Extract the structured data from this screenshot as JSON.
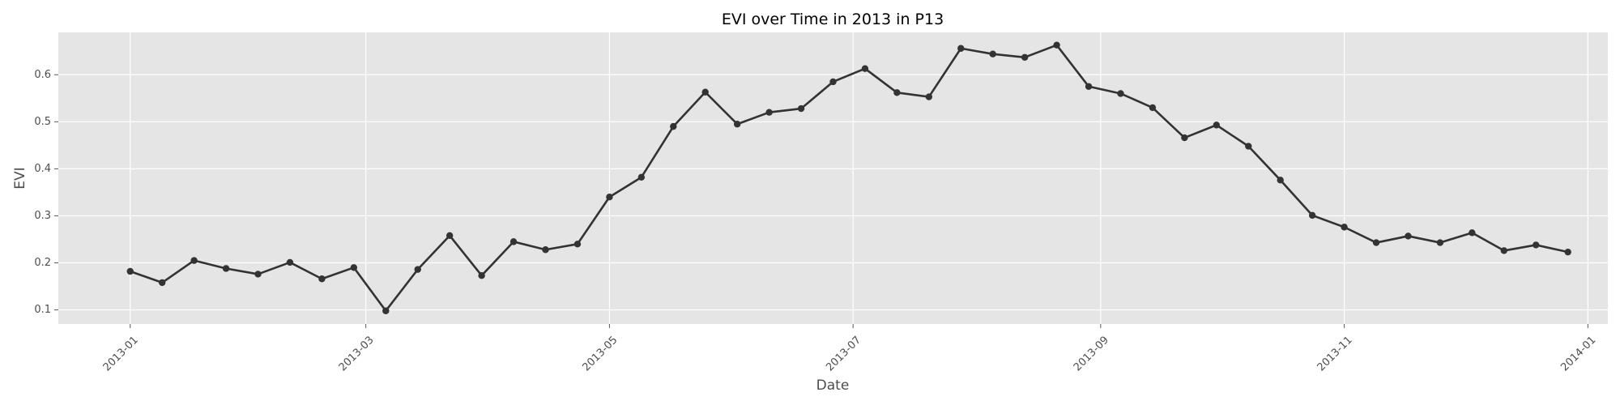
{
  "chart_data": {
    "type": "line",
    "title": "EVI over Time in 2013 in P13",
    "xlabel": "Date",
    "ylabel": "EVI",
    "xlim": [
      "2012-12-14",
      "2014-01-06"
    ],
    "ylim": [
      0.07,
      0.69
    ],
    "x_ticks": [
      "2013-01",
      "2013-03",
      "2013-05",
      "2013-07",
      "2013-09",
      "2013-11",
      "2014-01"
    ],
    "y_ticks": [
      "0.1",
      "0.2",
      "0.3",
      "0.4",
      "0.5",
      "0.6"
    ],
    "grid": true,
    "background_color": "#e5e5e5",
    "grid_color": "#ffffff",
    "line_color": "#333333",
    "series": [
      {
        "x": [
          "2013-01-01",
          "2013-01-09",
          "2013-01-17",
          "2013-01-25",
          "2013-02-02",
          "2013-02-10",
          "2013-02-18",
          "2013-02-26",
          "2013-03-06",
          "2013-03-14",
          "2013-03-22",
          "2013-03-30",
          "2013-04-07",
          "2013-04-15",
          "2013-04-23",
          "2013-05-01",
          "2013-05-09",
          "2013-05-17",
          "2013-05-25",
          "2013-06-02",
          "2013-06-10",
          "2013-06-18",
          "2013-06-26",
          "2013-07-04",
          "2013-07-12",
          "2013-07-20",
          "2013-07-28",
          "2013-08-05",
          "2013-08-13",
          "2013-08-21",
          "2013-08-29",
          "2013-09-06",
          "2013-09-14",
          "2013-09-22",
          "2013-09-30",
          "2013-10-08",
          "2013-10-16",
          "2013-10-24",
          "2013-11-01",
          "2013-11-09",
          "2013-11-17",
          "2013-11-25",
          "2013-12-03",
          "2013-12-11",
          "2013-12-19",
          "2013-12-27"
        ],
        "y": [
          0.182,
          0.158,
          0.205,
          0.188,
          0.176,
          0.201,
          0.166,
          0.19,
          0.098,
          0.186,
          0.258,
          0.173,
          0.245,
          0.228,
          0.24,
          0.34,
          0.382,
          0.49,
          0.563,
          0.495,
          0.52,
          0.528,
          0.585,
          0.613,
          0.562,
          0.553,
          0.656,
          0.644,
          0.637,
          0.663,
          0.575,
          0.56,
          0.53,
          0.466,
          0.493,
          0.448,
          0.376,
          0.301,
          0.276,
          0.243,
          0.257,
          0.243,
          0.264,
          0.226,
          0.238,
          0.223
        ]
      }
    ]
  }
}
